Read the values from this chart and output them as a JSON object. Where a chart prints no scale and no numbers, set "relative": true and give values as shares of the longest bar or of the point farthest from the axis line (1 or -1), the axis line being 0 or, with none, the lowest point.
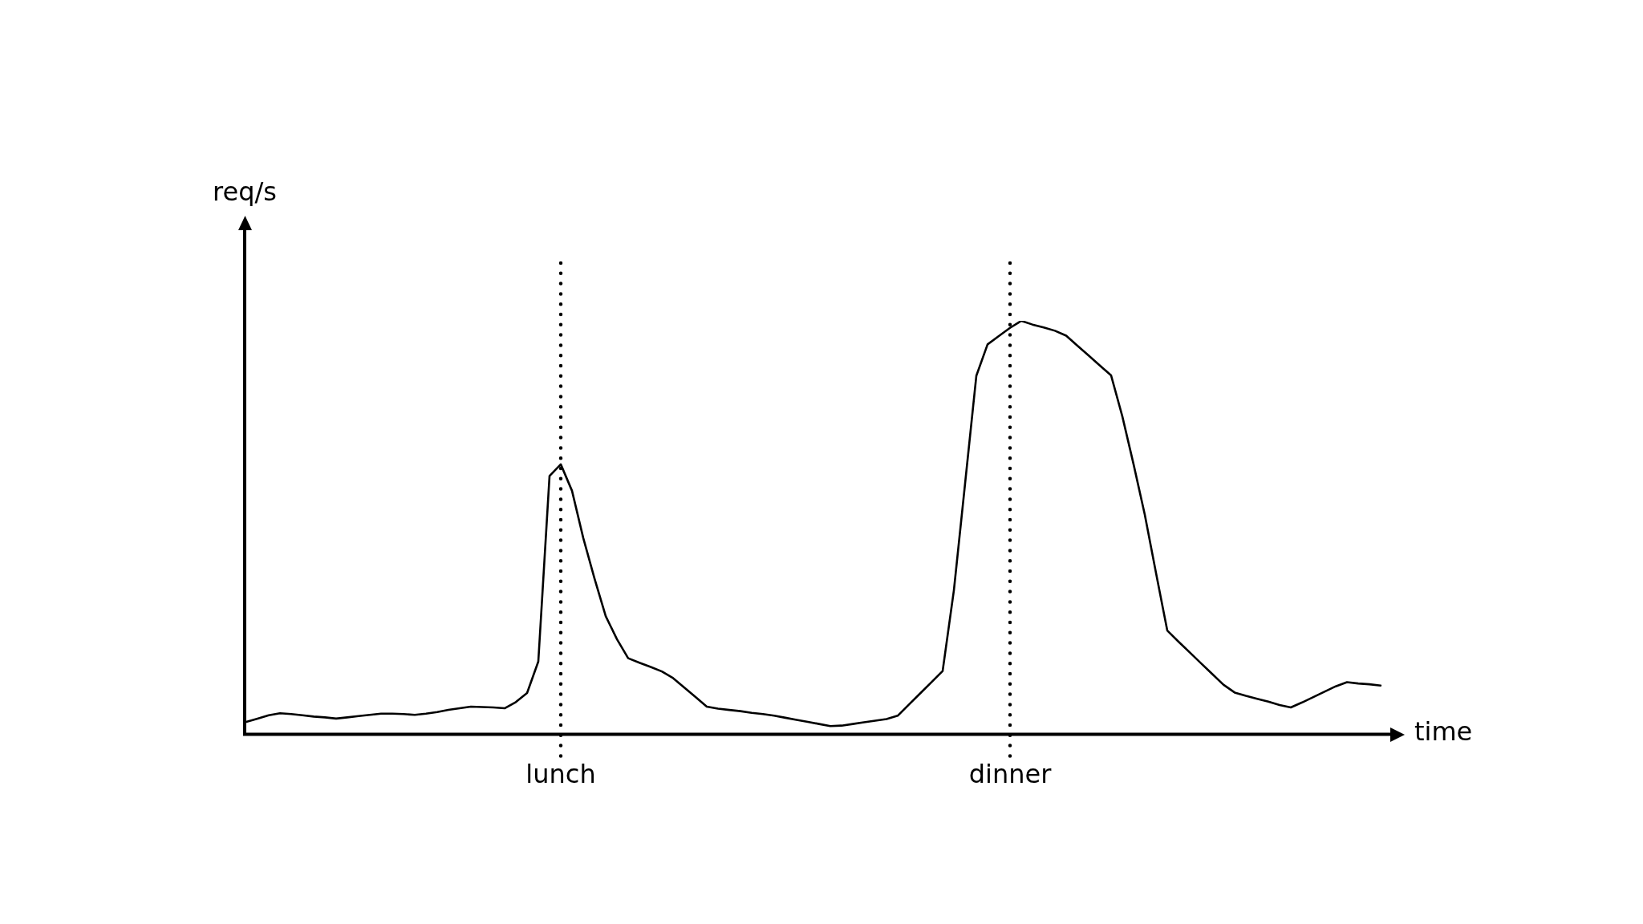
{
  "chart_data": {
    "type": "line",
    "relative": true,
    "xlabel": "time",
    "ylabel": "req/s",
    "color": "#000000",
    "categories": [
      null,
      null,
      null,
      null,
      null,
      null,
      null,
      null,
      null,
      null,
      null,
      null,
      null,
      null,
      null,
      null,
      null,
      null,
      null,
      null,
      null,
      null,
      null,
      null,
      null,
      null,
      null,
      null,
      "lunch",
      null,
      null,
      null,
      null,
      null,
      null,
      null,
      null,
      null,
      null,
      null,
      null,
      null,
      null,
      null,
      null,
      null,
      null,
      null,
      null,
      null,
      null,
      null,
      null,
      null,
      null,
      null,
      null,
      null,
      null,
      null,
      null,
      null,
      null,
      null,
      null,
      null,
      null,
      null,
      "dinner",
      null,
      null,
      null,
      null,
      null,
      null,
      null,
      null,
      null,
      null,
      null,
      null,
      null,
      null,
      null,
      null,
      null,
      null,
      null,
      null,
      null,
      null,
      null,
      null,
      null,
      null,
      null,
      null,
      null,
      null,
      null,
      null,
      null
    ],
    "values": [
      0.03,
      0.038,
      0.046,
      0.051,
      0.049,
      0.046,
      0.043,
      0.041,
      0.038,
      0.041,
      0.044,
      0.047,
      0.05,
      0.05,
      0.049,
      0.047,
      0.05,
      0.054,
      0.059,
      0.063,
      0.067,
      0.066,
      0.065,
      0.063,
      0.078,
      0.1,
      0.176,
      0.625,
      0.653,
      0.589,
      0.475,
      0.377,
      0.286,
      0.23,
      0.184,
      0.173,
      0.163,
      0.152,
      0.136,
      0.113,
      0.09,
      0.067,
      0.062,
      0.059,
      0.056,
      0.052,
      0.049,
      0.045,
      0.04,
      0.035,
      0.03,
      0.025,
      0.02,
      0.021,
      0.025,
      0.029,
      0.033,
      0.037,
      0.045,
      0.072,
      0.099,
      0.126,
      0.153,
      0.348,
      0.607,
      0.867,
      0.943,
      0.963,
      0.983,
      1.0,
      0.991,
      0.984,
      0.976,
      0.964,
      0.94,
      0.916,
      0.892,
      0.868,
      0.769,
      0.653,
      0.531,
      0.39,
      0.251,
      0.224,
      0.198,
      0.172,
      0.146,
      0.12,
      0.101,
      0.093,
      0.086,
      0.079,
      0.071,
      0.065,
      0.077,
      0.09,
      0.103,
      0.116,
      0.126,
      0.123,
      0.121,
      0.118
    ],
    "ref_lines": [
      {
        "axis": "x",
        "value": "lunch",
        "color": "#000000",
        "line_style": "dotted"
      },
      {
        "axis": "x",
        "value": "dinner",
        "color": "#000000",
        "line_style": "dotted"
      }
    ]
  }
}
